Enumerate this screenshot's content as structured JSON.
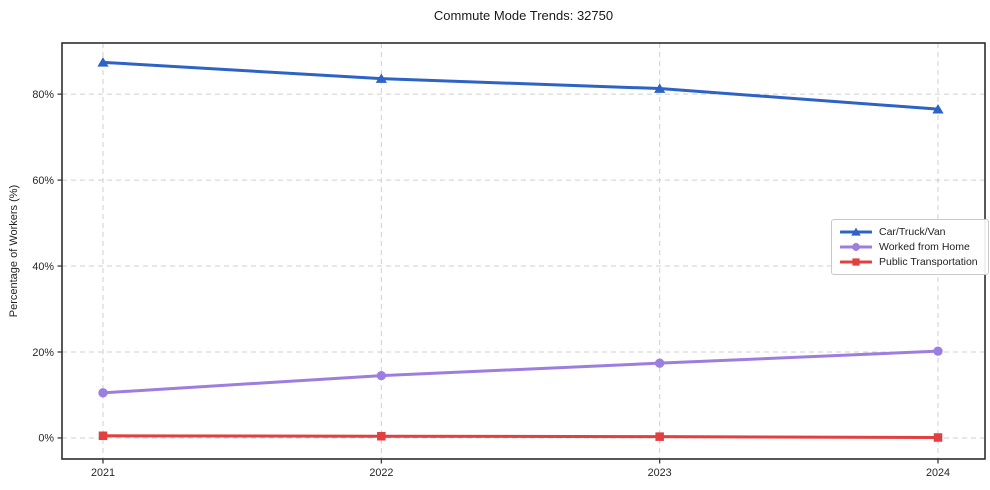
{
  "chart_data": {
    "type": "line",
    "title": "Commute Mode Trends: 32750",
    "xlabel": "",
    "ylabel": "Percentage of Workers (%)",
    "x": [
      2021,
      2022,
      2023,
      2024
    ],
    "x_tick_labels": [
      "2021",
      "2022",
      "2023",
      "2024"
    ],
    "y_ticks": [
      0,
      20,
      40,
      60,
      80
    ],
    "y_tick_labels": [
      "0%",
      "20%",
      "40%",
      "60%",
      "80%"
    ],
    "ylim": [
      -4.9,
      91.9
    ],
    "grid": true,
    "grid_style": "dashed",
    "legend_position": "center-right",
    "series": [
      {
        "name": "Car/Truck/Van",
        "color": "#2e63c6",
        "marker": "triangle",
        "values": [
          87.4,
          83.6,
          81.3,
          76.5
        ]
      },
      {
        "name": "Worked from Home",
        "color": "#9d7ede",
        "marker": "circle",
        "values": [
          10.5,
          14.5,
          17.4,
          20.2
        ]
      },
      {
        "name": "Public Transportation",
        "color": "#e04040",
        "marker": "square",
        "values": [
          0.5,
          0.4,
          0.3,
          0.1
        ]
      }
    ],
    "colors": {
      "grid": "#cfcfcf",
      "spine": "#2f2f2f",
      "text": "#262626",
      "background": "#ffffff"
    }
  }
}
